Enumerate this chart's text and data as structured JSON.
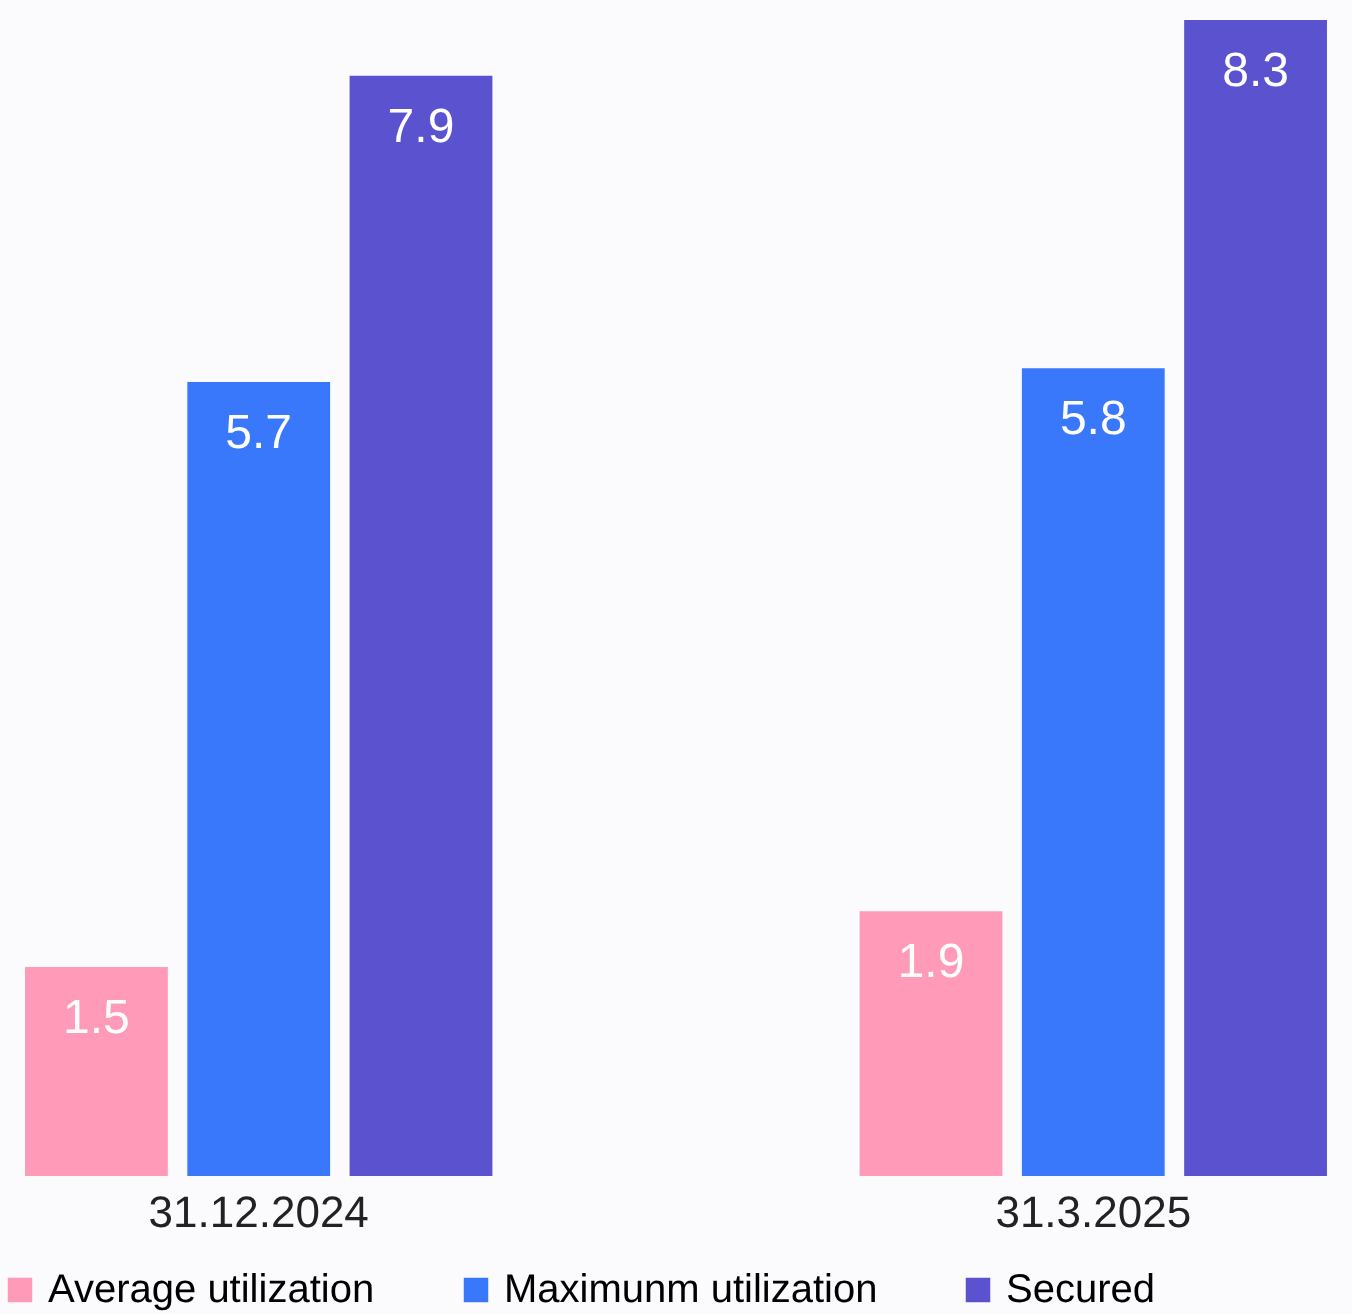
{
  "chart_data": {
    "type": "bar",
    "categories": [
      "31.12.2024",
      "31.3.2025"
    ],
    "series": [
      {
        "name": "Average utilization",
        "color": "#ff9bb8",
        "values": [
          1.5,
          1.9
        ]
      },
      {
        "name": "Maximunm utilization",
        "color": "#3a78fb",
        "values": [
          5.7,
          5.8
        ]
      },
      {
        "name": "Secured",
        "color": "#5b52cf",
        "values": [
          7.9,
          8.3
        ]
      }
    ],
    "data_labels": true,
    "legend": "bottom"
  }
}
